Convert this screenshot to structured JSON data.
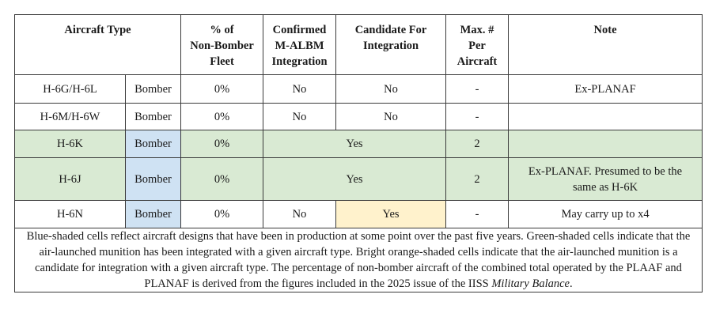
{
  "table": {
    "headers": {
      "aircraft_type": "Aircraft Type",
      "pct_non_bomber": [
        "% of",
        "Non-Bomber",
        "Fleet"
      ],
      "confirmed": [
        "Confirmed",
        "M-ALBM",
        "Integration"
      ],
      "candidate": [
        "Candidate For",
        "Integration"
      ],
      "max_per": [
        "Max. #",
        "Per",
        "Aircraft"
      ],
      "note": "Note"
    },
    "rows": [
      {
        "aircraft": "H-6G/H-6L",
        "role": "Bomber",
        "pct": "0%",
        "confirmed": "No",
        "candidate": "No",
        "max": "-",
        "note": "Ex-PLANAF"
      },
      {
        "aircraft": "H-6M/H-6W",
        "role": "Bomber",
        "pct": "0%",
        "confirmed": "No",
        "candidate": "No",
        "max": "-",
        "note": ""
      },
      {
        "aircraft": "H-6K",
        "role": "Bomber",
        "pct": "0%",
        "integration": "Yes",
        "max": "2",
        "note": ""
      },
      {
        "aircraft": "H-6J",
        "role": "Bomber",
        "pct": "0%",
        "integration": "Yes",
        "max": "2",
        "note": [
          "Ex-PLANAF. Presumed to be the",
          "same as H-6K"
        ]
      },
      {
        "aircraft": "H-6N",
        "role": "Bomber",
        "pct": "0%",
        "confirmed": "No",
        "candidate": "Yes",
        "max": "-",
        "note": "May carry up to x4"
      }
    ],
    "footnote": {
      "text_before": "Blue-shaded cells reflect aircraft designs that have been in production at some point over the past five years. Green-shaded cells indicate that the air-launched munition has been integrated with a given aircraft type. Bright orange-shaded cells indicate that the air-launched munition is a candidate for integration with a given aircraft type. The percentage of non-bomber aircraft of the combined total operated by the PLAAF and PLANAF is derived from the figures included in the 2025 issue of the IISS ",
      "italic": "Military Balance",
      "text_after": "."
    }
  },
  "colors": {
    "green": "#d9ead3",
    "blue": "#cfe2f3",
    "orange": "#fff2cc",
    "border": "#3a3a3a"
  }
}
